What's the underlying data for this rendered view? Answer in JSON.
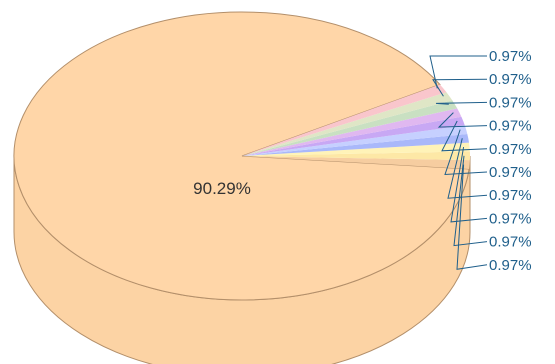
{
  "chart_data": {
    "type": "pie",
    "style": "3d",
    "title": "",
    "slices": [
      {
        "label": "90.29%",
        "value": 90.29,
        "color": "#ffd6a8"
      },
      {
        "label": "0.97%",
        "value": 0.97,
        "color": "#f9c6cc"
      },
      {
        "label": "0.97%",
        "value": 0.97,
        "color": "#dfe6c6"
      },
      {
        "label": "0.97%",
        "value": 0.97,
        "color": "#c9e0c2"
      },
      {
        "label": "0.97%",
        "value": 0.97,
        "color": "#e0b8f0"
      },
      {
        "label": "0.97%",
        "value": 0.97,
        "color": "#c8a8f4"
      },
      {
        "label": "0.97%",
        "value": 0.97,
        "color": "#c6d0ff"
      },
      {
        "label": "0.97%",
        "value": 0.97,
        "color": "#a9b8fa"
      },
      {
        "label": "0.97%",
        "value": 0.97,
        "color": "#fff3b8"
      },
      {
        "label": "0.97%",
        "value": 0.97,
        "color": "#fde8a6"
      },
      {
        "label": "0.97%",
        "value": 0.97,
        "color": "#f6cda0"
      }
    ],
    "label_color": "#1f5f8b",
    "edge_color": "#b38f6a"
  }
}
